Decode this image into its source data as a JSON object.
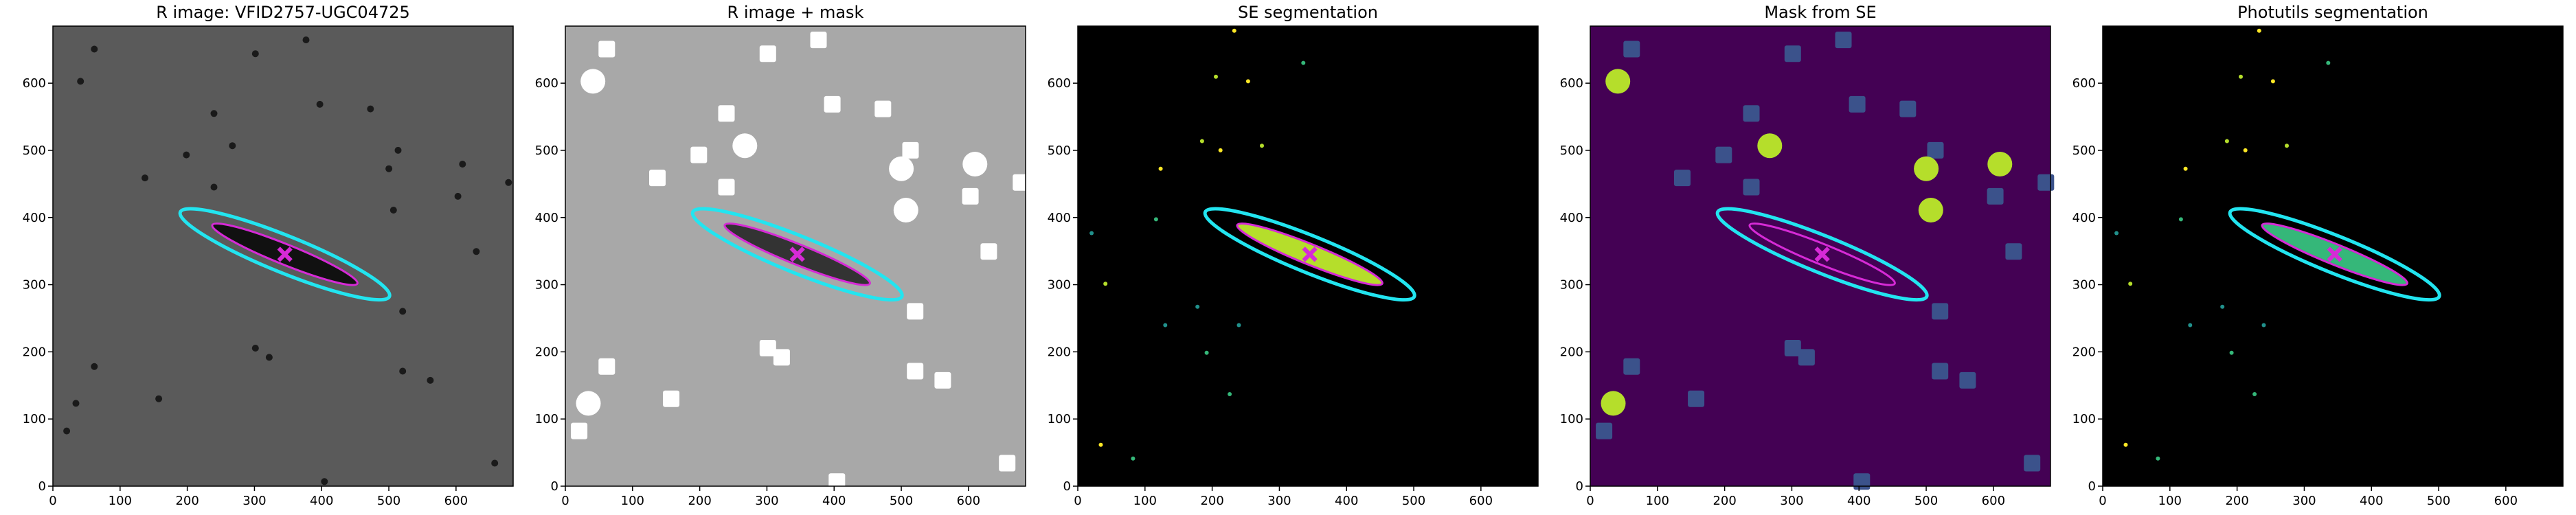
{
  "chart_data": [
    {
      "type": "image",
      "title": "R image: VFID2757-UGC04725",
      "xlim": [
        0,
        685
      ],
      "ylim": [
        0,
        685
      ],
      "xticks": [
        0,
        100,
        200,
        300,
        400,
        500,
        600
      ],
      "yticks": [
        0,
        100,
        200,
        300,
        400,
        500,
        600
      ],
      "background": "#5a5a5a"
    },
    {
      "type": "image",
      "title": "R image + mask",
      "xlim": [
        0,
        685
      ],
      "ylim": [
        0,
        685
      ],
      "xticks": [
        0,
        100,
        200,
        300,
        400,
        500,
        600
      ],
      "yticks": [
        0,
        100,
        200,
        300,
        400,
        500,
        600
      ],
      "background": "#a8a8a8"
    },
    {
      "type": "image",
      "title": "SE segmentation",
      "xlim": [
        0,
        685
      ],
      "ylim": [
        0,
        685
      ],
      "xticks": [
        0,
        100,
        200,
        300,
        400,
        500,
        600
      ],
      "yticks": [
        0,
        100,
        200,
        300,
        400,
        500,
        600
      ],
      "background": "#000000"
    },
    {
      "type": "image",
      "title": "Mask from SE",
      "xlim": [
        0,
        685
      ],
      "ylim": [
        0,
        685
      ],
      "xticks": [
        0,
        100,
        200,
        300,
        400,
        500,
        600
      ],
      "yticks": [
        0,
        100,
        200,
        300,
        400,
        500,
        600
      ],
      "background": "#440154"
    },
    {
      "type": "image",
      "title": "Photutils segmentation",
      "xlim": [
        0,
        685
      ],
      "ylim": [
        0,
        685
      ],
      "xticks": [
        0,
        100,
        200,
        300,
        400,
        500,
        600
      ],
      "yticks": [
        0,
        100,
        200,
        300,
        400,
        500,
        600
      ],
      "background": "#000000"
    }
  ]
}
